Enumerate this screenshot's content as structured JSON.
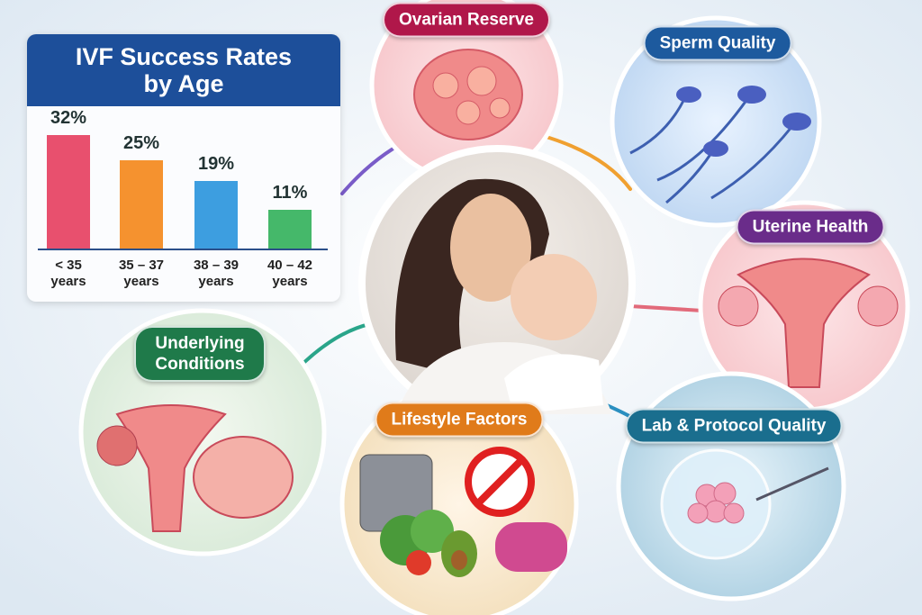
{
  "chart_data": {
    "type": "bar",
    "title": "IVF Success Rates by Age",
    "categories": [
      "< 35 years",
      "35 – 37 years",
      "38 – 39 years",
      "40 – 42 years"
    ],
    "values": [
      32,
      25,
      19,
      11
    ],
    "value_labels": [
      "32%",
      "25%",
      "19%",
      "11%"
    ],
    "colors": [
      "#e8506e",
      "#f5922f",
      "#3d9ee0",
      "#45b86a"
    ]
  },
  "topics": [
    "Ovarian Reserve",
    "Sperm Quality",
    "Uterine Health",
    "Underlying Conditions",
    "Lifestyle Factors",
    "Lab & Protocol Quality"
  ]
}
